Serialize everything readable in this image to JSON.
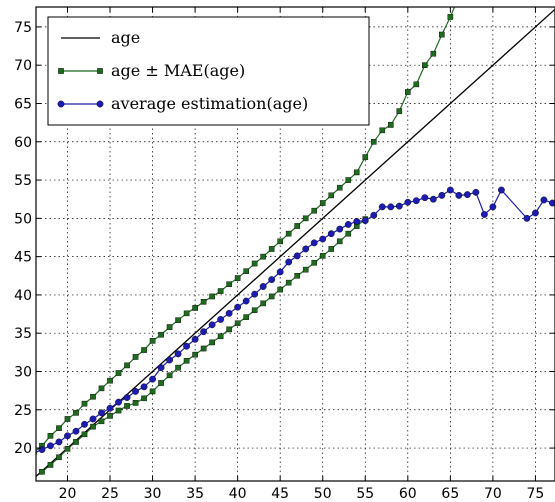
{
  "chart_data": {
    "type": "line",
    "title": "",
    "xlabel": "",
    "ylabel": "",
    "xlim": [
      16.3,
      77.3
    ],
    "ylim": [
      15.7,
      77.6
    ],
    "xticks": [
      20,
      25,
      30,
      35,
      40,
      45,
      50,
      55,
      60,
      65,
      70,
      75
    ],
    "yticks": [
      20,
      25,
      30,
      35,
      40,
      45,
      50,
      55,
      60,
      65,
      70,
      75
    ],
    "grid": true,
    "legend_position": "top-left",
    "series": [
      {
        "name": "age",
        "legend_label": "age",
        "color": "#000000",
        "marker": "none",
        "points": [
          [
            16.3,
            16.3
          ],
          [
            77.3,
            77.3
          ]
        ]
      },
      {
        "name": "age ± MAE(age)",
        "legend_label": "age ± MAE(age)",
        "color": "#1e6b1e",
        "marker": "square",
        "branches": [
          {
            "label": "upper",
            "points": [
              [
                16,
                19.4
              ],
              [
                17,
                20.3
              ],
              [
                18,
                21.6
              ],
              [
                19,
                22.6
              ],
              [
                20,
                23.8
              ],
              [
                21,
                24.6
              ],
              [
                22,
                25.8
              ],
              [
                23,
                26.7
              ],
              [
                24,
                27.8
              ],
              [
                25,
                28.8
              ],
              [
                26,
                29.8
              ],
              [
                27,
                30.8
              ],
              [
                28,
                31.9
              ],
              [
                29,
                32.8
              ],
              [
                30,
                34.0
              ],
              [
                31,
                34.8
              ],
              [
                32,
                35.8
              ],
              [
                33,
                36.7
              ],
              [
                34,
                37.6
              ],
              [
                35,
                38.3
              ],
              [
                36,
                39.1
              ],
              [
                37,
                39.8
              ],
              [
                38,
                40.5
              ],
              [
                39,
                41.4
              ],
              [
                40,
                42.2
              ],
              [
                41,
                43.1
              ],
              [
                42,
                44.1
              ],
              [
                43,
                45.0
              ],
              [
                44,
                46.0
              ],
              [
                45,
                47.0
              ],
              [
                46,
                48.0
              ],
              [
                47,
                49.0
              ],
              [
                48,
                50.0
              ],
              [
                49,
                51.0
              ],
              [
                50,
                52.0
              ],
              [
                51,
                53.0
              ],
              [
                52,
                54.0
              ],
              [
                53,
                55.0
              ],
              [
                54,
                56.0
              ],
              [
                55,
                58.0
              ],
              [
                56,
                60.0
              ],
              [
                57,
                61.5
              ],
              [
                58,
                62.2
              ],
              [
                59,
                64.0
              ],
              [
                60,
                66.5
              ],
              [
                61,
                67.5
              ],
              [
                62,
                70.0
              ],
              [
                63,
                71.5
              ],
              [
                64,
                74.0
              ],
              [
                65,
                76.3
              ],
              [
                66,
                79.0
              ]
            ]
          },
          {
            "label": "lower",
            "points": [
              [
                17,
                16.9
              ],
              [
                18,
                17.8
              ],
              [
                19,
                18.8
              ],
              [
                20,
                19.9
              ],
              [
                21,
                20.8
              ],
              [
                22,
                21.8
              ],
              [
                23,
                22.8
              ],
              [
                24,
                23.5
              ],
              [
                25,
                24.2
              ],
              [
                26,
                24.9
              ],
              [
                27,
                25.5
              ],
              [
                28,
                25.9
              ],
              [
                29,
                26.5
              ],
              [
                30,
                27.4
              ],
              [
                31,
                28.5
              ],
              [
                32,
                29.5
              ],
              [
                33,
                30.5
              ],
              [
                34,
                31.4
              ],
              [
                35,
                32.2
              ],
              [
                36,
                33.0
              ],
              [
                37,
                33.8
              ],
              [
                38,
                34.6
              ],
              [
                39,
                35.5
              ],
              [
                40,
                36.3
              ],
              [
                41,
                37.1
              ],
              [
                42,
                38.0
              ],
              [
                43,
                38.9
              ],
              [
                44,
                39.8
              ],
              [
                45,
                40.7
              ],
              [
                46,
                41.6
              ],
              [
                47,
                42.5
              ],
              [
                48,
                43.3
              ],
              [
                49,
                44.2
              ],
              [
                50,
                45.1
              ],
              [
                51,
                46.0
              ],
              [
                52,
                47.0
              ],
              [
                53,
                48.0
              ],
              [
                54,
                49.0
              ],
              [
                55,
                49.9
              ]
            ]
          }
        ]
      },
      {
        "name": "average estimation(age)",
        "legend_label": "average estimation(age)",
        "color": "#1c1cb0",
        "marker": "circle",
        "points": [
          [
            16,
            19.3
          ],
          [
            17,
            19.8
          ],
          [
            18,
            20.3
          ],
          [
            19,
            20.8
          ],
          [
            20,
            21.6
          ],
          [
            21,
            22.2
          ],
          [
            22,
            23.1
          ],
          [
            23,
            23.8
          ],
          [
            24,
            24.6
          ],
          [
            25,
            25.2
          ],
          [
            26,
            26.0
          ],
          [
            27,
            26.6
          ],
          [
            28,
            27.4
          ],
          [
            29,
            28.0
          ],
          [
            30,
            29.0
          ],
          [
            31,
            30.5
          ],
          [
            32,
            31.5
          ],
          [
            33,
            32.3
          ],
          [
            34,
            33.3
          ],
          [
            35,
            34.2
          ],
          [
            36,
            35.2
          ],
          [
            37,
            36.1
          ],
          [
            38,
            36.8
          ],
          [
            39,
            37.6
          ],
          [
            40,
            38.4
          ],
          [
            41,
            39.2
          ],
          [
            42,
            40.1
          ],
          [
            43,
            41.1
          ],
          [
            44,
            42.0
          ],
          [
            45,
            43.0
          ],
          [
            46,
            44.3
          ],
          [
            47,
            45.1
          ],
          [
            48,
            46.0
          ],
          [
            49,
            46.8
          ],
          [
            50,
            47.3
          ],
          [
            51,
            48.0
          ],
          [
            52,
            48.6
          ],
          [
            53,
            49.2
          ],
          [
            54,
            49.6
          ],
          [
            55,
            49.7
          ],
          [
            56,
            50.4
          ],
          [
            57,
            51.5
          ],
          [
            58,
            51.5
          ],
          [
            59,
            51.6
          ],
          [
            60,
            52.1
          ],
          [
            61,
            52.3
          ],
          [
            62,
            52.7
          ],
          [
            63,
            52.5
          ],
          [
            64,
            53.0
          ],
          [
            65,
            53.7
          ],
          [
            66,
            53.0
          ],
          [
            67,
            53.1
          ],
          [
            68,
            53.4
          ],
          [
            69,
            50.5
          ],
          [
            70,
            51.5
          ],
          [
            71,
            53.7
          ],
          [
            74,
            50.0
          ],
          [
            75,
            50.7
          ],
          [
            76,
            52.4
          ],
          [
            77,
            52.0
          ]
        ]
      }
    ]
  }
}
